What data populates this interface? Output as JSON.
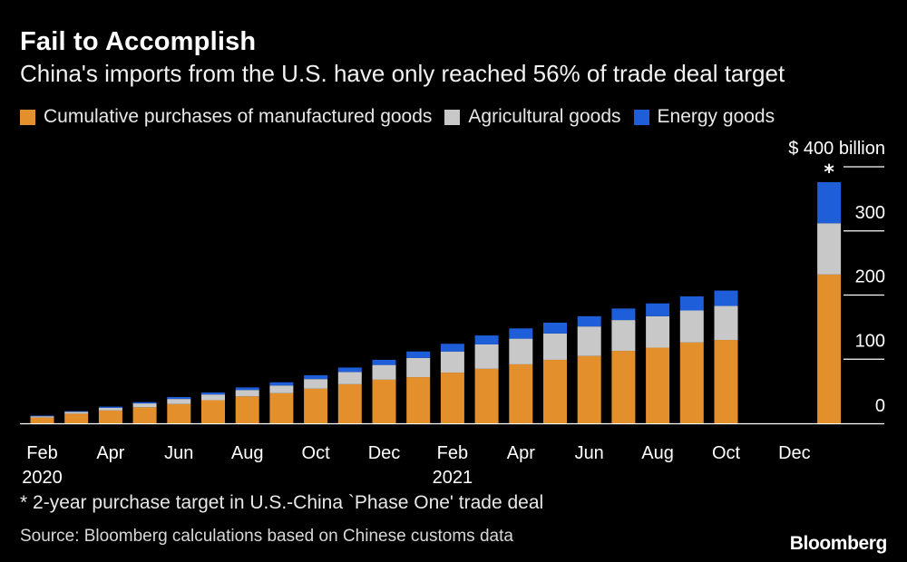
{
  "colors": {
    "manufactured": "#E3902C",
    "agricultural": "#C8C8C8",
    "energy": "#1E5ED8",
    "background": "#000000",
    "text": "#FFFFFF"
  },
  "header": {
    "title": "Fail to Accomplish",
    "subtitle": "China's imports from the U.S. have only reached 56% of trade deal target"
  },
  "legend": {
    "items": [
      {
        "label": "Cumulative purchases of manufactured goods",
        "color_key": "manufactured"
      },
      {
        "label": "Agricultural goods",
        "color_key": "agricultural"
      },
      {
        "label": "Energy goods",
        "color_key": "energy"
      }
    ]
  },
  "footer": {
    "footnote": "2-year purchase target in U.S.-China `Phase One' trade deal",
    "footnote_marker": "*",
    "source": "Source: Bloomberg calculations based on Chinese customs data",
    "logo": "Bloomberg"
  },
  "chart_data": {
    "type": "bar",
    "stacked": true,
    "title": "Fail to Accomplish",
    "subtitle": "China's imports from the U.S. have only reached 56% of trade deal target",
    "unit_label": "$ 400 billion",
    "ylim": [
      0,
      400
    ],
    "yticks": [
      0,
      100,
      200,
      300,
      400
    ],
    "ytick_labels": [
      "0",
      "100",
      "200",
      "300",
      "$ 400 billion"
    ],
    "categories": [
      "Feb 2020",
      "Mar 2020",
      "Apr 2020",
      "May 2020",
      "Jun 2020",
      "Jul 2020",
      "Aug 2020",
      "Sep 2020",
      "Oct 2020",
      "Nov 2020",
      "Dec 2020",
      "Jan 2021",
      "Feb 2021",
      "Mar 2021",
      "Apr 2021",
      "May 2021",
      "Jun 2021",
      "Jul 2021",
      "Aug 2021",
      "Sep 2021",
      "Oct 2021",
      "Nov 2021",
      "Dec 2021",
      "Target"
    ],
    "xtick_labels": [
      {
        "index": 0,
        "label": "Feb",
        "year": "2020"
      },
      {
        "index": 2,
        "label": "Apr"
      },
      {
        "index": 4,
        "label": "Jun"
      },
      {
        "index": 6,
        "label": "Aug"
      },
      {
        "index": 8,
        "label": "Oct"
      },
      {
        "index": 10,
        "label": "Dec"
      },
      {
        "index": 12,
        "label": "Feb",
        "year": "2021"
      },
      {
        "index": 14,
        "label": "Apr"
      },
      {
        "index": 16,
        "label": "Jun"
      },
      {
        "index": 18,
        "label": "Aug"
      },
      {
        "index": 20,
        "label": "Oct"
      },
      {
        "index": 22,
        "label": "Dec"
      }
    ],
    "series": [
      {
        "name": "Cumulative purchases of manufactured goods",
        "color_key": "manufactured",
        "values": [
          9,
          15,
          20,
          25,
          30,
          36,
          42,
          47,
          54,
          61,
          68,
          72,
          79,
          85,
          92,
          99,
          105,
          113,
          118,
          126,
          130,
          null,
          null,
          232
        ]
      },
      {
        "name": "Agricultural goods",
        "color_key": "agricultural",
        "values": [
          2,
          3,
          4,
          6,
          8,
          9,
          10,
          12,
          15,
          19,
          23,
          30,
          33,
          38,
          40,
          41,
          46,
          48,
          49,
          50,
          53,
          null,
          null,
          80
        ]
      },
      {
        "name": "Energy goods",
        "color_key": "energy",
        "values": [
          1,
          1,
          2,
          2,
          3,
          3,
          4,
          5,
          6,
          7,
          8,
          10,
          12,
          14,
          16,
          17,
          16,
          18,
          20,
          22,
          24,
          null,
          null,
          64
        ]
      }
    ],
    "annotations": [
      {
        "text": "*",
        "category": "Target",
        "meaning": "2-year purchase target in U.S.-China `Phase One' trade deal"
      }
    ]
  }
}
